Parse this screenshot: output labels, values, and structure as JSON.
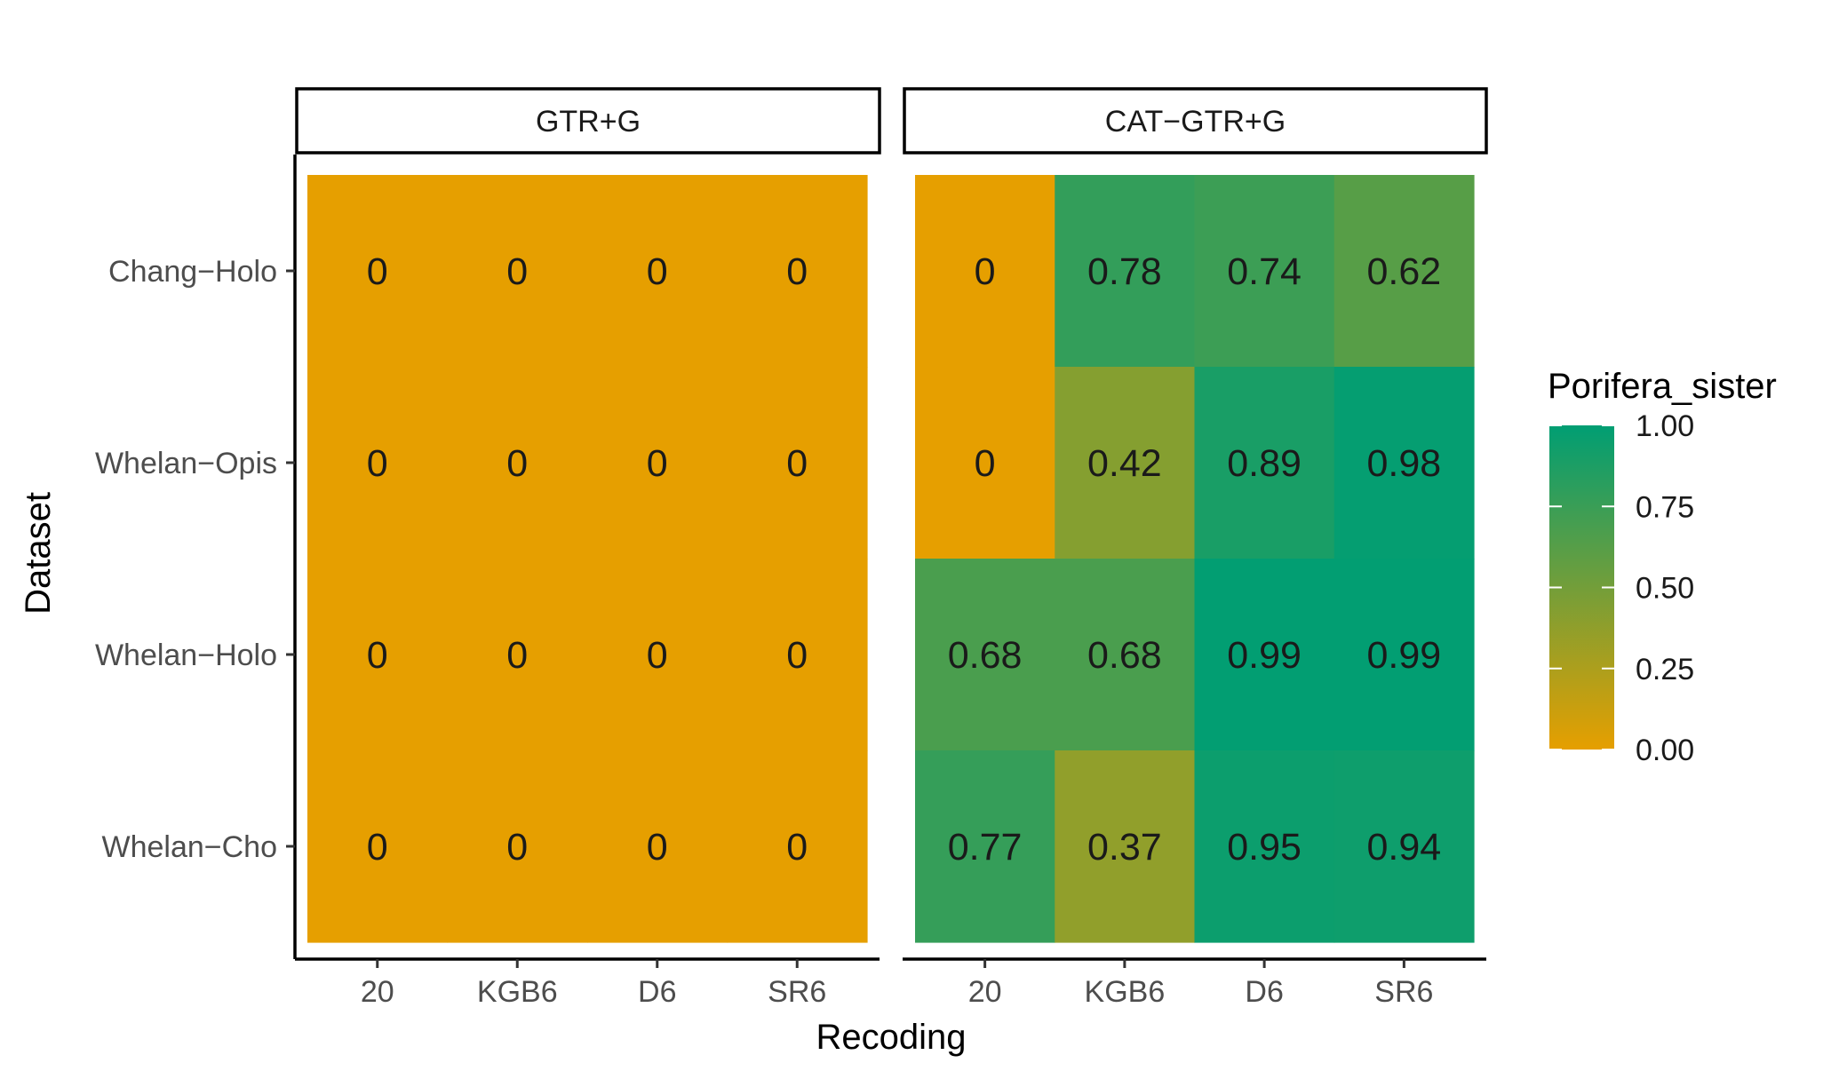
{
  "chart_data": {
    "type": "heatmap",
    "xlabel": "Recoding",
    "ylabel": "Dataset",
    "x_categories": [
      "20",
      "KGB6",
      "D6",
      "SR6"
    ],
    "y_categories": [
      "Chang−Holo",
      "Whelan−Opis",
      "Whelan−Holo",
      "Whelan−Cho"
    ],
    "facets": [
      {
        "label": "GTR+G",
        "values": [
          [
            0,
            0,
            0,
            0
          ],
          [
            0,
            0,
            0,
            0
          ],
          [
            0,
            0,
            0,
            0
          ],
          [
            0,
            0,
            0,
            0
          ]
        ],
        "cell_labels": [
          [
            "0",
            "0",
            "0",
            "0"
          ],
          [
            "0",
            "0",
            "0",
            "0"
          ],
          [
            "0",
            "0",
            "0",
            "0"
          ],
          [
            "0",
            "0",
            "0",
            "0"
          ]
        ]
      },
      {
        "label": "CAT−GTR+G",
        "values": [
          [
            0,
            0.78,
            0.74,
            0.62
          ],
          [
            0,
            0.42,
            0.89,
            0.98
          ],
          [
            0.68,
            0.68,
            0.99,
            0.99
          ],
          [
            0.77,
            0.37,
            0.95,
            0.94
          ]
        ],
        "cell_labels": [
          [
            "0",
            "0.78",
            "0.74",
            "0.62"
          ],
          [
            "0",
            "0.42",
            "0.89",
            "0.98"
          ],
          [
            "0.68",
            "0.68",
            "0.99",
            "0.99"
          ],
          [
            "0.77",
            "0.37",
            "0.95",
            "0.94"
          ]
        ]
      }
    ],
    "legend": {
      "title": "Porifera_sister",
      "ticks": [
        "0.00",
        "0.25",
        "0.50",
        "0.75",
        "1.00"
      ],
      "tick_values": [
        0,
        0.25,
        0.5,
        0.75,
        1.0
      ],
      "range": [
        0,
        1
      ],
      "low_color": "#E69F00",
      "high_color": "#009E73",
      "placement": "right"
    },
    "grid": false
  }
}
